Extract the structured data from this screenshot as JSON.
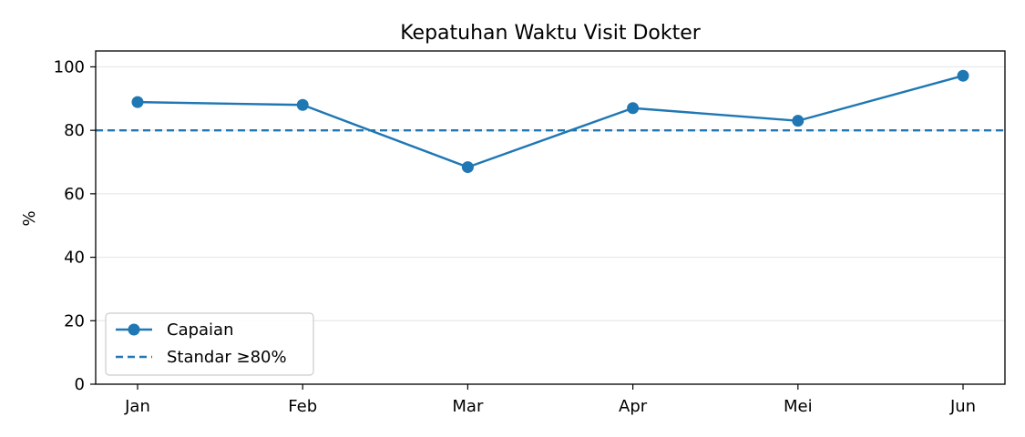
{
  "chart_data": {
    "type": "line",
    "title": "Kepatuhan Waktu Visit Dokter",
    "xlabel": "",
    "ylabel": "%",
    "categories": [
      "Jan",
      "Feb",
      "Mar",
      "Apr",
      "Mei",
      "Jun"
    ],
    "series": [
      {
        "name": "Capaian",
        "values": [
          88.9,
          88.0,
          68.4,
          87.0,
          83.0,
          97.2
        ],
        "color": "#1f77b4",
        "marker": "circle"
      }
    ],
    "reference_line": {
      "name": "Standar ≥80%",
      "value": 80,
      "style": "dashed",
      "color": "#1f77b4"
    },
    "ylim": [
      0,
      105
    ],
    "yticks": [
      0,
      20,
      40,
      60,
      80,
      100
    ],
    "grid": "y",
    "legend_position": "lower-left"
  }
}
